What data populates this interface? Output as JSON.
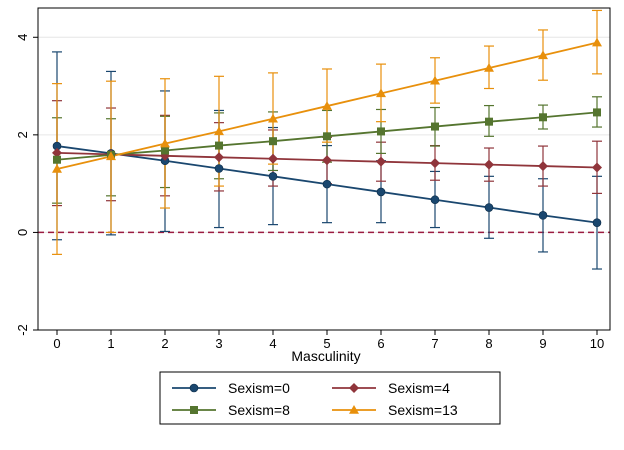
{
  "chart_data": {
    "type": "line",
    "title": "",
    "xlabel": "Masculinity",
    "ylabel": "",
    "x": [
      0,
      1,
      2,
      3,
      4,
      5,
      6,
      7,
      8,
      9,
      10
    ],
    "xlim": [
      0,
      10
    ],
    "ylim": [
      -2,
      4.6
    ],
    "xticks": [
      "0",
      "1",
      "2",
      "3",
      "4",
      "5",
      "6",
      "7",
      "8",
      "9",
      "10"
    ],
    "yticks": [
      "-2",
      "0",
      "2",
      "4"
    ],
    "ytick_values": [
      -2,
      0,
      2,
      4
    ],
    "grid": true,
    "reference_line": {
      "y": 0,
      "color": "#9b1b3f",
      "style": "dashed"
    },
    "legend_position": "bottom",
    "series": [
      {
        "name": "Sexism=0",
        "color": "#1a476f",
        "marker": "circle",
        "values": [
          1.77,
          1.62,
          1.47,
          1.31,
          1.15,
          0.99,
          0.83,
          0.67,
          0.51,
          0.35,
          0.2
        ],
        "ci_low": [
          -0.15,
          -0.05,
          0.02,
          0.1,
          0.16,
          0.2,
          0.2,
          0.1,
          -0.12,
          -0.4,
          -0.75
        ],
        "ci_high": [
          3.7,
          3.3,
          2.9,
          2.5,
          2.15,
          1.78,
          1.47,
          1.25,
          1.15,
          1.1,
          1.15
        ]
      },
      {
        "name": "Sexism=4",
        "color": "#90353b",
        "marker": "diamond",
        "values": [
          1.63,
          1.6,
          1.57,
          1.54,
          1.51,
          1.48,
          1.45,
          1.42,
          1.39,
          1.36,
          1.33
        ],
        "ci_low": [
          0.55,
          0.65,
          0.75,
          0.85,
          0.95,
          1.0,
          1.05,
          1.07,
          1.05,
          0.95,
          0.8
        ],
        "ci_high": [
          2.7,
          2.55,
          2.4,
          2.25,
          2.1,
          1.95,
          1.85,
          1.78,
          1.73,
          1.77,
          1.87
        ]
      },
      {
        "name": "Sexism=8",
        "color": "#55752f",
        "marker": "square",
        "values": [
          1.49,
          1.59,
          1.68,
          1.78,
          1.87,
          1.97,
          2.07,
          2.17,
          2.27,
          2.36,
          2.46
        ],
        "ci_low": [
          0.6,
          0.75,
          0.92,
          1.1,
          1.27,
          1.44,
          1.62,
          1.77,
          1.97,
          2.12,
          2.16
        ],
        "ci_high": [
          2.35,
          2.33,
          2.38,
          2.45,
          2.47,
          2.5,
          2.52,
          2.56,
          2.6,
          2.61,
          2.78
        ]
      },
      {
        "name": "Sexism=13",
        "color": "#e8900c",
        "marker": "triangle",
        "values": [
          1.3,
          1.56,
          1.82,
          2.07,
          2.33,
          2.59,
          2.85,
          3.11,
          3.37,
          3.63,
          3.89
        ],
        "ci_low": [
          -0.45,
          0.0,
          0.5,
          0.95,
          1.4,
          1.85,
          2.27,
          2.65,
          2.95,
          3.12,
          3.25
        ],
        "ci_high": [
          3.05,
          3.1,
          3.15,
          3.2,
          3.27,
          3.35,
          3.45,
          3.58,
          3.82,
          4.15,
          4.55
        ]
      }
    ]
  }
}
